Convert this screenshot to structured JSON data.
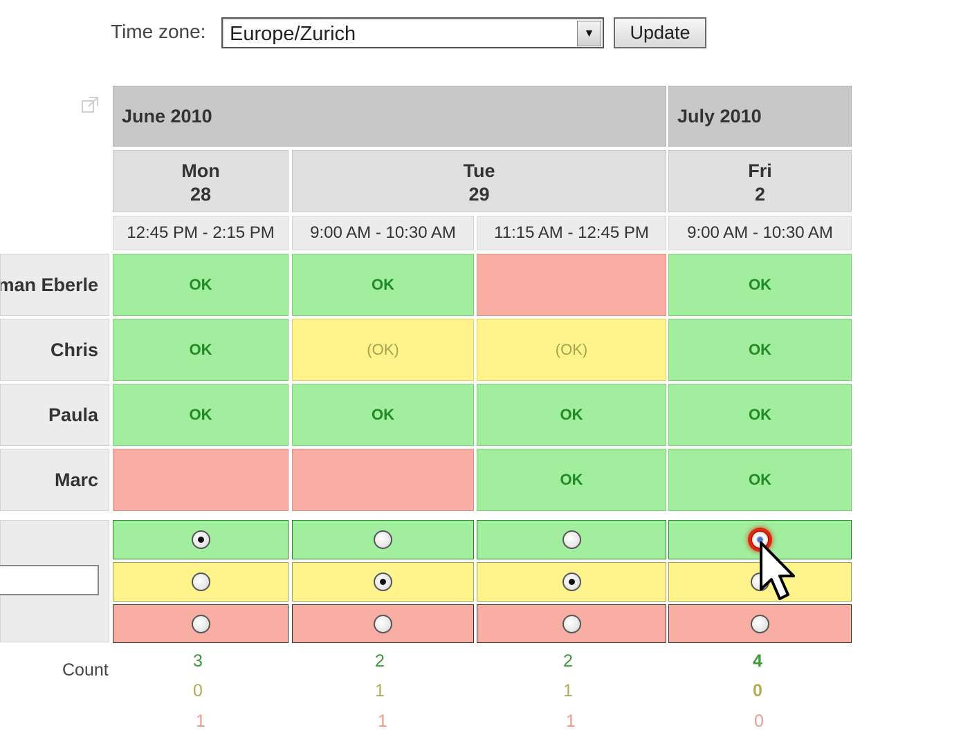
{
  "timezone": {
    "label": "Time zone:",
    "value": "Europe/Zurich"
  },
  "update_label": "Update",
  "months": [
    {
      "label": "June 2010"
    },
    {
      "label": "July 2010"
    }
  ],
  "days": [
    {
      "weekday": "Mon",
      "date": "28"
    },
    {
      "weekday": "Tue",
      "date": "29"
    },
    {
      "weekday": "Fri",
      "date": "2"
    }
  ],
  "timeslots": [
    "12:45 PM - 2:15 PM",
    "9:00 AM - 10:30 AM",
    "11:15 AM - 12:45 PM",
    "9:00 AM - 10:30 AM"
  ],
  "participants": [
    {
      "name": "man Eberle",
      "cells": [
        {
          "status": "ok",
          "text": "OK"
        },
        {
          "status": "ok",
          "text": "OK"
        },
        {
          "status": "no",
          "text": ""
        },
        {
          "status": "ok",
          "text": "OK"
        }
      ]
    },
    {
      "name": "Chris",
      "cells": [
        {
          "status": "ok",
          "text": "OK"
        },
        {
          "status": "maybe",
          "text": "(OK)"
        },
        {
          "status": "maybe",
          "text": "(OK)"
        },
        {
          "status": "ok",
          "text": "OK"
        }
      ]
    },
    {
      "name": "Paula",
      "cells": [
        {
          "status": "ok",
          "text": "OK"
        },
        {
          "status": "ok",
          "text": "OK"
        },
        {
          "status": "ok",
          "text": "OK"
        },
        {
          "status": "ok",
          "text": "OK"
        }
      ]
    },
    {
      "name": "Marc",
      "cells": [
        {
          "status": "no",
          "text": ""
        },
        {
          "status": "no",
          "text": ""
        },
        {
          "status": "ok",
          "text": "OK"
        },
        {
          "status": "ok",
          "text": "OK"
        }
      ]
    }
  ],
  "new_entry": {
    "name_value": "",
    "selections": [
      "yes",
      "maybe",
      "maybe",
      "yes"
    ]
  },
  "count_label": "Count",
  "counts": {
    "yes": [
      "3",
      "2",
      "2",
      "4"
    ],
    "maybe": [
      "0",
      "1",
      "1",
      "0"
    ],
    "no": [
      "1",
      "1",
      "1",
      "0"
    ]
  },
  "colors": {
    "ok": "#a0ee9e",
    "maybe": "#fff48c",
    "no": "#f9aea4",
    "header_month": "#c8c8c8",
    "header_day": "#e0e0e0"
  },
  "icons": {
    "popout": "external-link-icon",
    "cursor": "mouse-pointer-icon",
    "dropdown": "chevron-down-icon"
  }
}
